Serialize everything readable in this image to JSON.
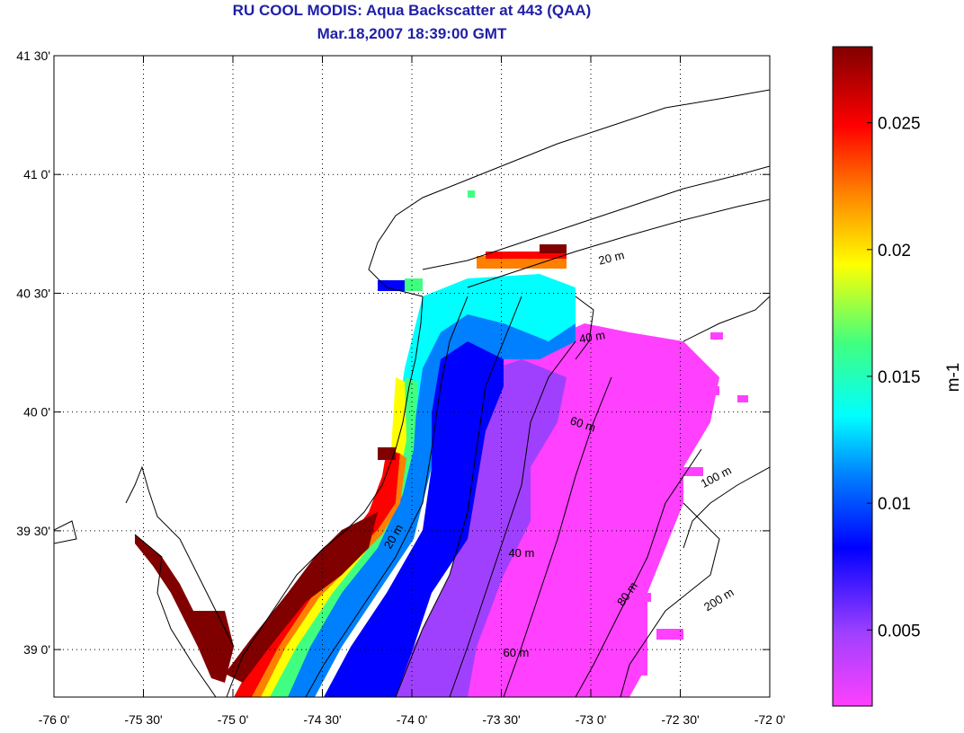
{
  "title_line1": "RU COOL MODIS: Aqua Backscatter at 443 (QAA)",
  "title_line2": "Mar.18,2007 18:39:00 GMT",
  "lon_ticks": [
    "-76 0'",
    "-75 30'",
    "-75 0'",
    "-74 30'",
    "-74 0'",
    "-73 30'",
    "-73 0'",
    "-72 30'",
    "-72 0'"
  ],
  "lat_ticks": [
    "41 30'",
    "41 0'",
    "40 30'",
    "40 0'",
    "39 30'",
    "39 0'"
  ],
  "contour_labels": [
    {
      "text": "20 m",
      "lon": -72.95,
      "lat": 40.62,
      "rotate": -14
    },
    {
      "text": "40 m",
      "lon": -73.06,
      "lat": 40.29,
      "rotate": -10
    },
    {
      "text": "60 m",
      "lon": -73.12,
      "lat": 39.95,
      "rotate": 18
    },
    {
      "text": "100 m",
      "lon": -72.37,
      "lat": 39.68,
      "rotate": -28
    },
    {
      "text": "20 m",
      "lon": -74.12,
      "lat": 39.42,
      "rotate": -60
    },
    {
      "text": "40 m",
      "lon": -73.46,
      "lat": 39.39,
      "rotate": 0
    },
    {
      "text": "80 m",
      "lon": -72.82,
      "lat": 39.18,
      "rotate": -55
    },
    {
      "text": "200 m",
      "lon": -72.35,
      "lat": 39.16,
      "rotate": -32
    },
    {
      "text": "60 m",
      "lon": -73.49,
      "lat": 38.97,
      "rotate": 0
    }
  ],
  "colorbar": {
    "min": 0.002,
    "max": 0.028,
    "ticks": [
      "0.005",
      "0.01",
      "0.015",
      "0.02",
      "0.025"
    ],
    "tick_values": [
      0.005,
      0.01,
      0.015,
      0.02,
      0.025
    ],
    "unit": "m-1",
    "colors": [
      "#ff40ff",
      "#a040ff",
      "#0000ff",
      "#0080ff",
      "#00ffff",
      "#40ff80",
      "#ffff00",
      "#ff8000",
      "#ff0000",
      "#800000"
    ]
  }
}
